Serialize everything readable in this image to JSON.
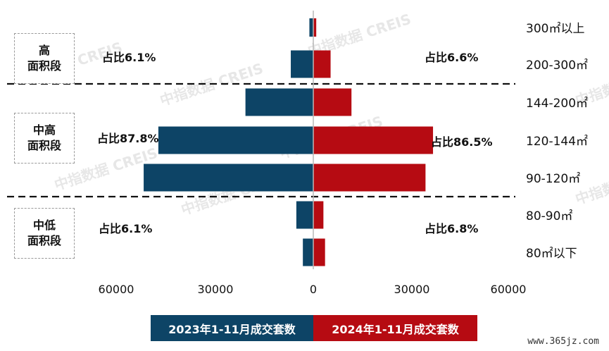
{
  "chart_data": {
    "type": "bar",
    "orientation": "horizontal-diverging",
    "categories": [
      "300㎡以上",
      "200-300㎡",
      "144-200㎡",
      "120-144㎡",
      "90-120㎡",
      "80-90㎡",
      "80㎡以下"
    ],
    "series": [
      {
        "name": "2023年1-11月成交套数",
        "color": "#0d4466",
        "side": "left",
        "values": [
          1200,
          6900,
          20800,
          47500,
          52000,
          5200,
          3200
        ]
      },
      {
        "name": "2024年1-11月成交套数",
        "color": "#b60b12",
        "side": "right",
        "values": [
          900,
          5300,
          11700,
          36700,
          34400,
          3100,
          3600
        ]
      }
    ],
    "x_ticks": [
      "60000",
      "30000",
      "0",
      "30000",
      "60000"
    ],
    "xlim": [
      -60000,
      60000
    ],
    "groups": [
      {
        "label": "高\n面积段",
        "left_share": "占比6.1%",
        "right_share": "占比6.6%"
      },
      {
        "label": "中高\n面积段",
        "left_share": "占比87.8%",
        "right_share": "占比86.5%"
      },
      {
        "label": "中低\n面积段",
        "left_share": "占比6.1%",
        "right_share": "占比6.8%"
      }
    ],
    "watermark_text": "中指数据 CREIS",
    "legend_position": "bottom"
  },
  "site_watermark": "www.365jz.com"
}
